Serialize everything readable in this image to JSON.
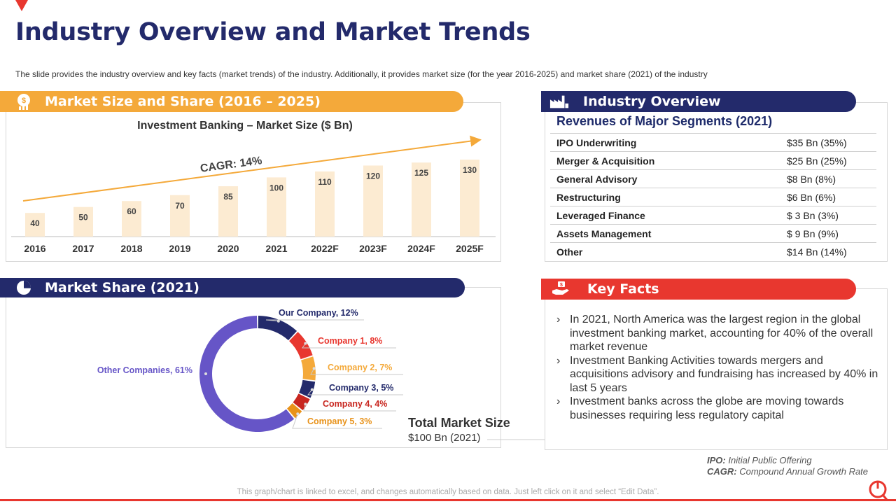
{
  "page": {
    "title": "Industry Overview and Market Trends",
    "subtitle": "The slide provides  the industry overview  and key facts (market trends) of the industry. Additionally, it provides  market size (for the year 2016-2025)  and market share (2021) of the industry"
  },
  "colors": {
    "navy": "#232a6b",
    "orange": "#f4a93a",
    "red": "#e8372f",
    "bar": "#fcebd2",
    "donut_other": "#6655c7"
  },
  "market_size": {
    "banner_title": "Market Size and Share (2016 – 2025)",
    "icon": "money-growth-icon",
    "cagr_label": "CAGR: 14%"
  },
  "market_share": {
    "banner_title": "Market Share (2021)",
    "icon": "pie-chart-icon",
    "total_title": "Total Market Size",
    "total_value": "$100 Bn (2021)"
  },
  "industry_overview": {
    "banner_title": "Industry Overview",
    "icon": "factory-icon",
    "table_title": "Revenues of Major Segments (2021)",
    "rows": [
      {
        "label": "IPO Underwriting",
        "value": "$35 Bn (35%)"
      },
      {
        "label": "Merger & Acquisition",
        "value": "$25 Bn (25%)"
      },
      {
        "label": "General Advisory",
        "value": "$8 Bn (8%)"
      },
      {
        "label": "Restructuring",
        "value": "$6 Bn (6%)"
      },
      {
        "label": "Leveraged Finance",
        "value": "$ 3 Bn (3%)"
      },
      {
        "label": "Assets Management",
        "value": "$ 9 Bn (9%)"
      },
      {
        "label": "Other",
        "value": "$14 Bn (14%)"
      }
    ]
  },
  "key_facts": {
    "banner_title": "Key Facts",
    "icon": "hand-money-icon",
    "bullet_glyph": "›",
    "items": [
      "In 2021, North America was the largest region in the global investment  banking market, accounting for 40% of the overall market revenue",
      "Investment  Banking Activities towards mergers and acquisitions advisory and fundraising  has increased by 40% in last 5 years",
      "Investment  banks across the globe are moving towards businesses requiring less regulatory  capital"
    ]
  },
  "abbreviations": [
    {
      "abbr": "IPO:",
      "text": "Initial Public Offering"
    },
    {
      "abbr": "CAGR:",
      "text": "Compound  Annual  Growth  Rate"
    }
  ],
  "footer_note": "This graph/chart is linked to excel,  and changes automatically based on data. Just left click on it and select “Edit Data”.",
  "chart_data": [
    {
      "type": "bar",
      "title": "Investment Banking – Market Size ($ Bn)",
      "categories": [
        "2016",
        "2017",
        "2018",
        "2019",
        "2020",
        "2021",
        "2022F",
        "2023F",
        "2024F",
        "2025F"
      ],
      "values": [
        40,
        50,
        60,
        70,
        85,
        100,
        110,
        120,
        125,
        130
      ],
      "ylim": [
        0,
        130
      ],
      "annotation": "CAGR: 14%",
      "grid": false
    },
    {
      "type": "pie",
      "slices": [
        {
          "label": "Our Company, 12%",
          "value": 12,
          "color": "#232a6b"
        },
        {
          "label": "Company 1, 8%",
          "value": 8,
          "color": "#e8372f"
        },
        {
          "label": "Company 2, 7%",
          "value": 7,
          "color": "#f4a93a"
        },
        {
          "label": "Company 3, 5%",
          "value": 5,
          "color": "#232a6b"
        },
        {
          "label": "Company 4, 4%",
          "value": 4,
          "color": "#c8261f"
        },
        {
          "label": "Company 5, 3%",
          "value": 3,
          "color": "#e8921a"
        },
        {
          "label": "Other Companies, 61%",
          "value": 61,
          "color": "#6655c7"
        }
      ]
    }
  ]
}
